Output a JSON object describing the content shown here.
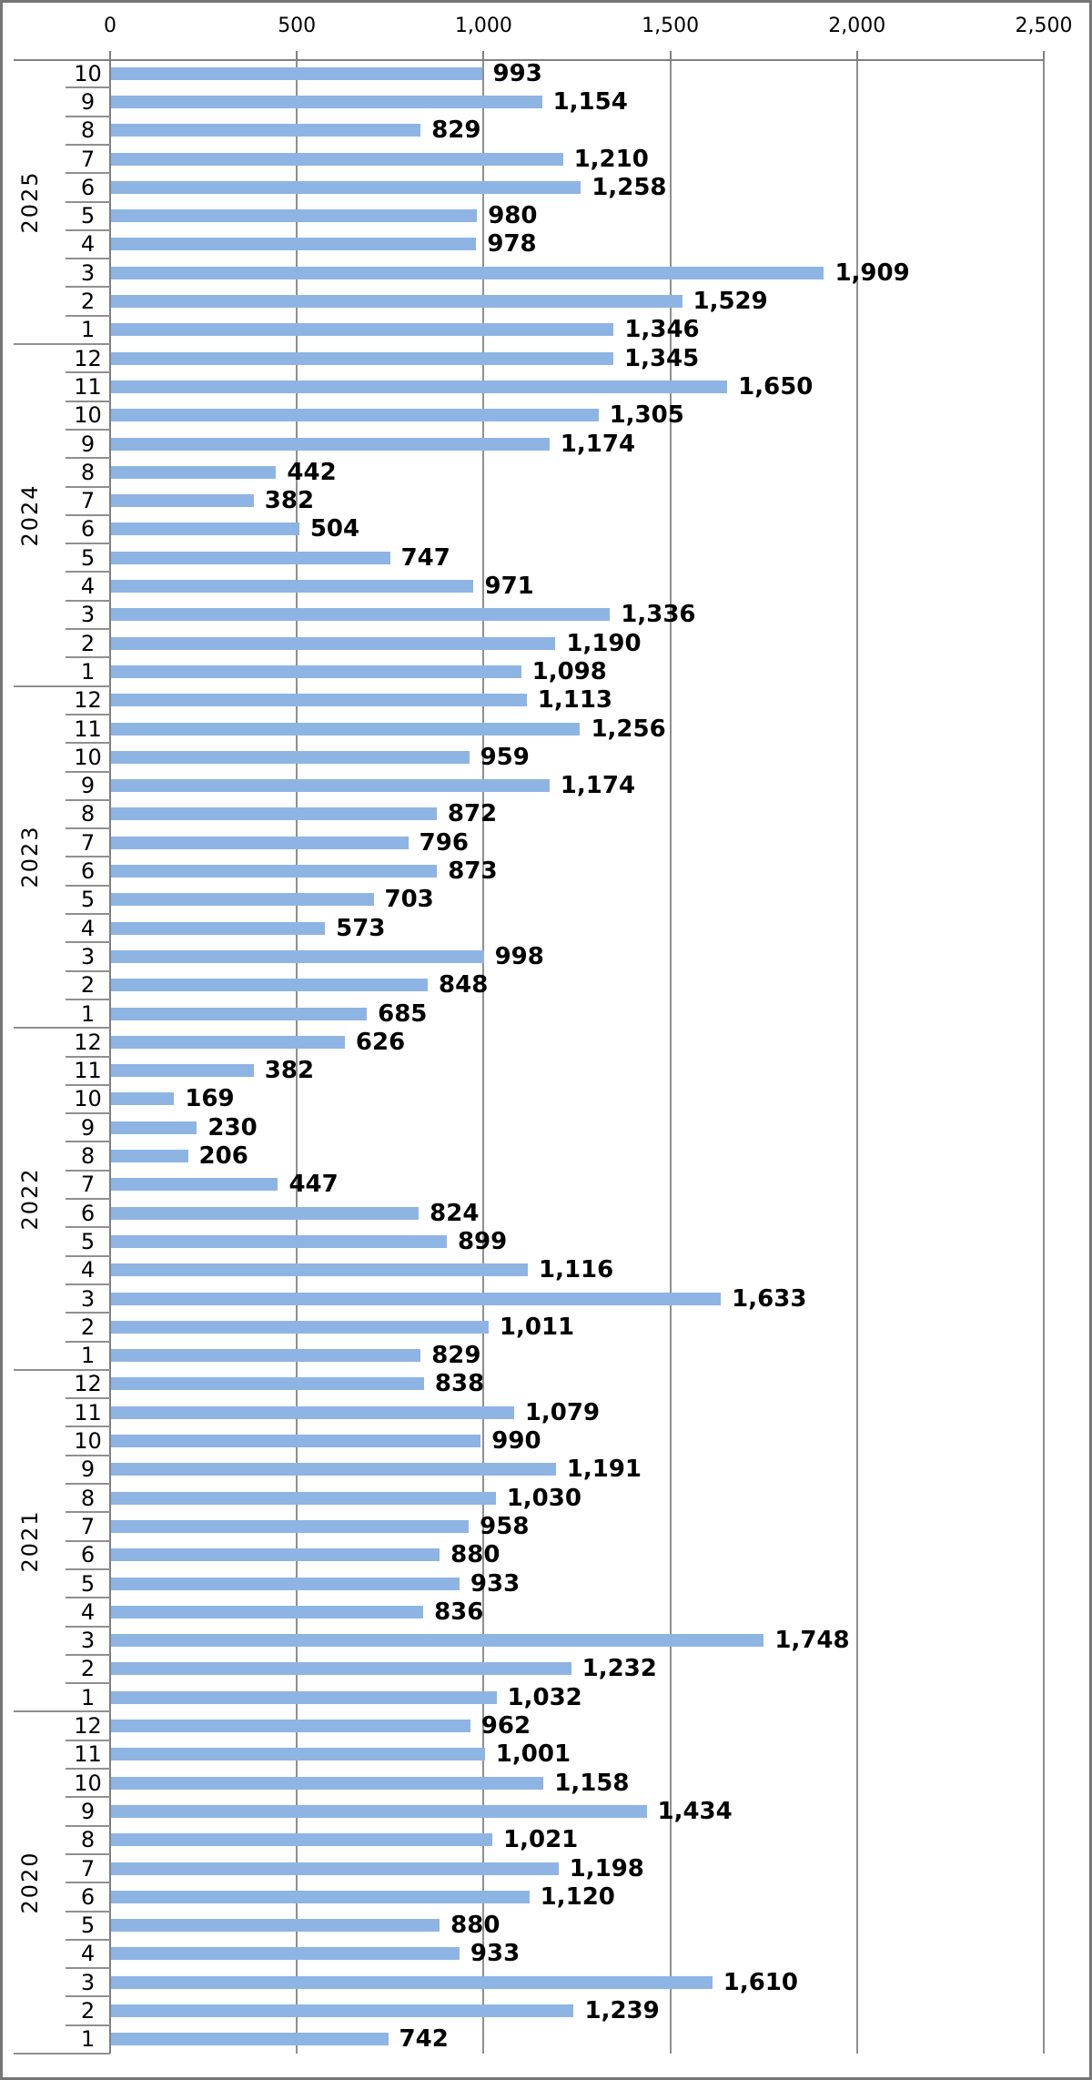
{
  "chart_data": {
    "type": "bar",
    "orientation": "horizontal",
    "title": "",
    "legend": false,
    "grid": true,
    "bar_color": "#8EB4E3",
    "value_axis": {
      "position": "top",
      "min": 0,
      "max": 2500,
      "ticks": [
        0,
        500,
        1000,
        1500,
        2000,
        2500
      ],
      "tick_labels": [
        "0",
        "500",
        "1,000",
        "1,500",
        "2,000",
        "2,500"
      ]
    },
    "category_axis": {
      "outer_level": "year",
      "inner_level": "month"
    },
    "data_labels": {
      "visible": true,
      "bold": true,
      "format": "#,##0"
    },
    "groups": [
      {
        "year": "2025",
        "months": [
          "10",
          "9",
          "8",
          "7",
          "6",
          "5",
          "4",
          "3",
          "2",
          "1"
        ],
        "values": [
          993,
          1154,
          829,
          1210,
          1258,
          980,
          978,
          1909,
          1529,
          1346
        ]
      },
      {
        "year": "2024",
        "months": [
          "12",
          "11",
          "10",
          "9",
          "8",
          "7",
          "6",
          "5",
          "4",
          "3",
          "2",
          "1"
        ],
        "values": [
          1345,
          1650,
          1305,
          1174,
          442,
          382,
          504,
          747,
          971,
          1336,
          1190,
          1098
        ]
      },
      {
        "year": "2023",
        "months": [
          "12",
          "11",
          "10",
          "9",
          "8",
          "7",
          "6",
          "5",
          "4",
          "3",
          "2",
          "1"
        ],
        "values": [
          1113,
          1256,
          959,
          1174,
          872,
          796,
          873,
          703,
          573,
          998,
          848,
          685
        ]
      },
      {
        "year": "2022",
        "months": [
          "12",
          "11",
          "10",
          "9",
          "8",
          "7",
          "6",
          "5",
          "4",
          "3",
          "2",
          "1"
        ],
        "values": [
          626,
          382,
          169,
          230,
          206,
          447,
          824,
          899,
          1116,
          1633,
          1011,
          829
        ]
      },
      {
        "year": "2021",
        "months": [
          "12",
          "11",
          "10",
          "9",
          "8",
          "7",
          "6",
          "5",
          "4",
          "3",
          "2",
          "1"
        ],
        "values": [
          838,
          1079,
          990,
          1191,
          1030,
          958,
          880,
          933,
          836,
          1748,
          1232,
          1032
        ]
      },
      {
        "year": "2020",
        "months": [
          "12",
          "11",
          "10",
          "9",
          "8",
          "7",
          "6",
          "5",
          "4",
          "3",
          "2",
          "1"
        ],
        "values": [
          962,
          1001,
          1158,
          1434,
          1021,
          1198,
          1120,
          880,
          933,
          1610,
          1239,
          742
        ]
      }
    ]
  }
}
